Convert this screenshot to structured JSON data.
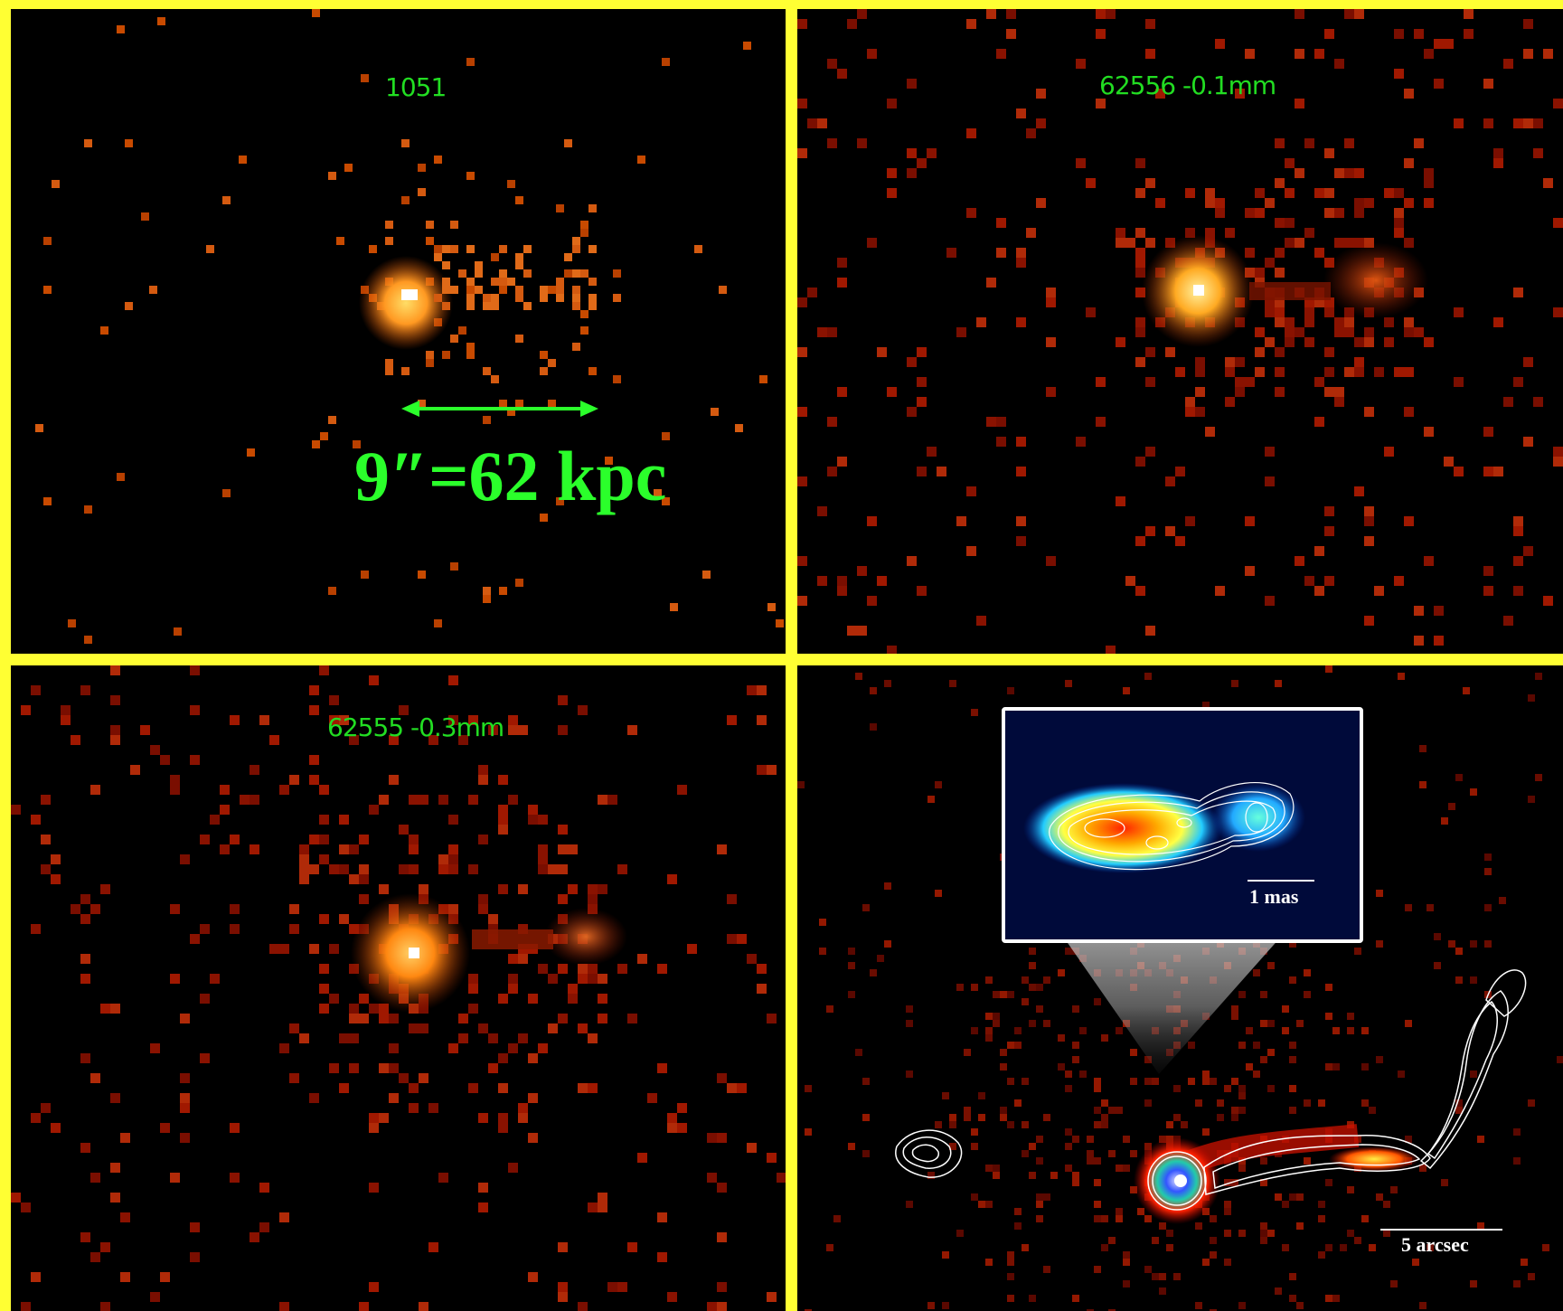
{
  "panels": {
    "top_left": {
      "label": "1051",
      "scale_label": "9″=62 kpc"
    },
    "top_right": {
      "label": "62556 -0.1mm"
    },
    "bottom_left": {
      "label": "62555 -0.3mm"
    },
    "bottom_right": {
      "inset_scale": "1 mas",
      "scale": "5 arcsec"
    }
  },
  "colors": {
    "frame": "#ffff33",
    "divider": "#ffffff",
    "label": "#22dd22",
    "scale_arrow": "#2bff2b"
  }
}
